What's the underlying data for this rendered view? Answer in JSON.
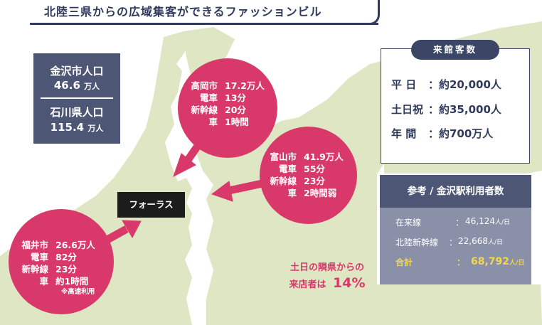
{
  "header": {
    "title": "北陸三県からの広域集客ができるファッションビル"
  },
  "population": {
    "kanazawa_label": "金沢市人口",
    "kanazawa_value": "46.6",
    "kanazawa_unit": "万人",
    "ishikawa_label": "石川県人口",
    "ishikawa_value": "115.4",
    "ishikawa_unit": "万人"
  },
  "takaoka": {
    "rows": [
      {
        "k": "高岡市",
        "v": "17.2万人"
      },
      {
        "k": "電車",
        "v": "13分"
      },
      {
        "k": "新幹線",
        "v": "20分"
      },
      {
        "k": "車",
        "v": "1時間"
      }
    ]
  },
  "toyama": {
    "rows": [
      {
        "k": "富山市",
        "v": "41.9万人"
      },
      {
        "k": "電車",
        "v": "55分"
      },
      {
        "k": "新幹線",
        "v": "23分"
      },
      {
        "k": "車",
        "v": "2時間弱"
      }
    ]
  },
  "fukui": {
    "rows": [
      {
        "k": "福井市",
        "v": "26.6万人"
      },
      {
        "k": "電車",
        "v": "82分"
      },
      {
        "k": "新幹線",
        "v": "23分"
      },
      {
        "k": "車",
        "v": "約1時間"
      }
    ],
    "note": "※高速利用"
  },
  "store": {
    "name": "フォーラス"
  },
  "visitors": {
    "title": "来館客数",
    "rows": [
      {
        "label": "平 日",
        "value": "：約20,000人"
      },
      {
        "label": "土日祝",
        "value": "：約35,000人"
      },
      {
        "label": "年 間",
        "value": "：約700万人"
      }
    ]
  },
  "station": {
    "title": "参考 / 金沢駅利用者数",
    "rows": [
      {
        "label": "在来線",
        "colon": "：",
        "value": "46,124",
        "unit": "人/日"
      },
      {
        "label": "北陸新幹線",
        "colon": "：",
        "value": "22,668",
        "unit": "人/日"
      }
    ],
    "total_label": "合計",
    "total_colon": "：",
    "total_value": "68,792",
    "total_unit": "人/日"
  },
  "neighbor": {
    "line1": "土日の隣県からの",
    "line2": "来店者は",
    "percent": "14%"
  },
  "colors": {
    "navy": "#2f3a5c",
    "magenta": "#d8386a",
    "land": "#dfe6c4",
    "slate": "#4d5674",
    "gray_blue": "#8a90a8",
    "gold": "#f2d84a"
  }
}
